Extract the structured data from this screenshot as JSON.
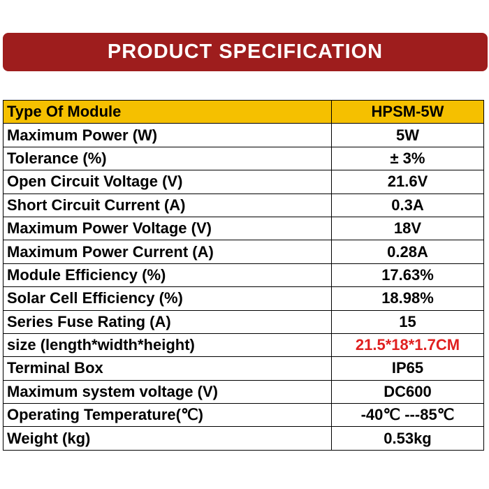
{
  "banner": {
    "title": "PRODUCT SPECIFICATION"
  },
  "colors": {
    "banner_bg": "#9e1d1d",
    "header_row_bg": "#f5c000",
    "highlight_value": "#e02020"
  },
  "spec_table": {
    "rows": [
      {
        "label": "Type Of Module",
        "value": "HPSM-5W"
      },
      {
        "label": "Maximum Power (W)",
        "value": "5W"
      },
      {
        "label": "Tolerance (%)",
        "value": "± 3%"
      },
      {
        "label": "Open Circuit Voltage (V)",
        "value": "21.6V"
      },
      {
        "label": "Short Circuit Current (A)",
        "value": "0.3A"
      },
      {
        "label": "Maximum Power Voltage (V)",
        "value": "18V"
      },
      {
        "label": "Maximum Power Current (A)",
        "value": "0.28A"
      },
      {
        "label": "Module Efficiency (%)",
        "value": "17.63%"
      },
      {
        "label": "Solar Cell Efficiency (%)",
        "value": "18.98%"
      },
      {
        "label": "Series Fuse Rating (A)",
        "value": "15"
      },
      {
        "label": "size (length*width*height)",
        "value": "21.5*18*1.7CM"
      },
      {
        "label": "Terminal Box",
        "value": "IP65"
      },
      {
        "label": "Maximum system voltage (V)",
        "value": "DC600"
      },
      {
        "label": "Operating Temperature(℃)",
        "value": "-40℃ ---85℃"
      },
      {
        "label": "Weight (kg)",
        "value": "0.53kg"
      }
    ]
  }
}
